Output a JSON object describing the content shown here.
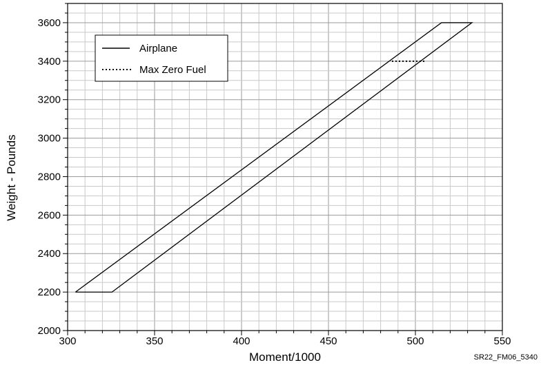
{
  "chart_data": {
    "type": "line",
    "xlabel": "Moment/1000",
    "ylabel": "Weight - Pounds",
    "xlim": [
      300,
      550
    ],
    "ylim": [
      2000,
      3700
    ],
    "x_ticks": [
      "300",
      "350",
      "400",
      "450",
      "500",
      "550"
    ],
    "y_ticks": [
      "2000",
      "2200",
      "2400",
      "2600",
      "2800",
      "3000",
      "3200",
      "3400",
      "3600"
    ],
    "grid": true,
    "legend_position": "top-left",
    "series": [
      {
        "name": "Airplane",
        "style": "solid",
        "x": [
          304.5,
          325.5,
          532.5,
          515.0,
          304.5
        ],
        "y": [
          2200,
          2200,
          3600,
          3600,
          2200
        ]
      },
      {
        "name": "Max Zero Fuel",
        "style": "dotted",
        "x": [
          486.5,
          505.5
        ],
        "y": [
          3400,
          3400
        ]
      }
    ],
    "footnote": "SR22_FM06_5340"
  }
}
